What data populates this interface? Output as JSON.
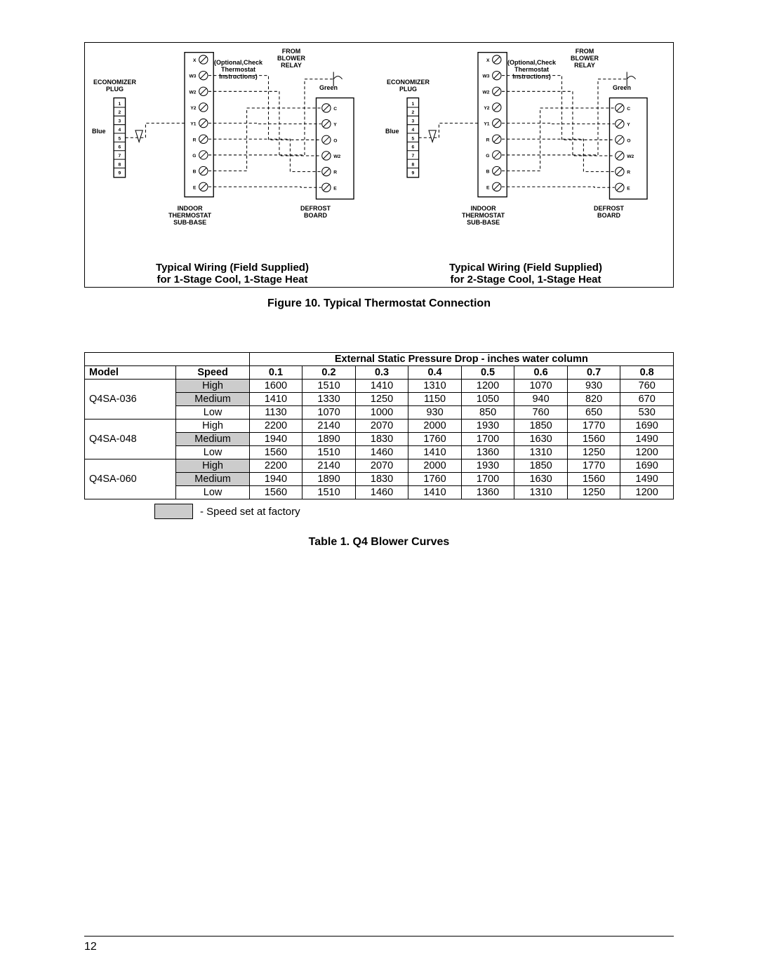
{
  "diagrams": {
    "figure_caption": "Figure 10. Typical Thermostat Connection",
    "panels": [
      {
        "caption_l1": "Typical Wiring (Field Supplied)",
        "caption_l2": "for 1-Stage Cool, 1-Stage Heat",
        "labels": {
          "economizer": "ECONOMIZER\nPLUG",
          "from_blower": "FROM\nBLOWER\nRELAY",
          "green": "Green",
          "blue": "Blue",
          "optional": "(Optional,Check\nThermostat\nInstructions)",
          "indoor": "INDOOR\nTHERMOSTAT\nSUB-BASE",
          "defrost": "DEFROST\nBOARD"
        },
        "thermostat_terminals": [
          "X",
          "W3",
          "W2",
          "Y2",
          "Y1",
          "R",
          "G",
          "B",
          "E"
        ],
        "defrost_terminals": [
          "C",
          "Y",
          "O",
          "W2",
          "R",
          "E"
        ],
        "plug_pins": [
          "1",
          "2",
          "3",
          "4",
          "5",
          "6",
          "7",
          "8",
          "9"
        ]
      },
      {
        "caption_l1": "Typical Wiring (Field Supplied)",
        "caption_l2": "for 2-Stage Cool, 1-Stage Heat",
        "labels": {
          "economizer": "ECONOMIZER\nPLUG",
          "from_blower": "FROM\nBLOWER\nRELAY",
          "green": "Green",
          "blue": "Blue",
          "optional": "(Optional,Check\nThermostat\nInstructions)",
          "indoor": "INDOOR\nTHERMOSTAT\nSUB-BASE",
          "defrost": "DEFROST\nBOARD"
        },
        "thermostat_terminals": [
          "X",
          "W3",
          "W2",
          "Y2",
          "Y1",
          "R",
          "G",
          "B",
          "E"
        ],
        "defrost_terminals": [
          "C",
          "Y",
          "O",
          "W2",
          "R",
          "E"
        ],
        "plug_pins": [
          "1",
          "2",
          "3",
          "4",
          "5",
          "6",
          "7",
          "8",
          "9"
        ]
      }
    ]
  },
  "table": {
    "super_header": "External Static Pressure Drop - inches water column",
    "col_model": "Model",
    "col_speed": "Speed",
    "pressure_cols": [
      "0.1",
      "0.2",
      "0.3",
      "0.4",
      "0.5",
      "0.6",
      "0.7",
      "0.8"
    ],
    "groups": [
      {
        "model": "Q4SA-036",
        "rows": [
          {
            "speed": "High",
            "factory": true,
            "vals": [
              "1600",
              "1510",
              "1410",
              "1310",
              "1200",
              "1070",
              "930",
              "760"
            ]
          },
          {
            "speed": "Medium",
            "factory": true,
            "vals": [
              "1410",
              "1330",
              "1250",
              "1150",
              "1050",
              "940",
              "820",
              "670"
            ]
          },
          {
            "speed": "Low",
            "factory": false,
            "vals": [
              "1130",
              "1070",
              "1000",
              "930",
              "850",
              "760",
              "650",
              "530"
            ]
          }
        ]
      },
      {
        "model": "Q4SA-048",
        "rows": [
          {
            "speed": "High",
            "factory": false,
            "vals": [
              "2200",
              "2140",
              "2070",
              "2000",
              "1930",
              "1850",
              "1770",
              "1690"
            ]
          },
          {
            "speed": "Medium",
            "factory": true,
            "vals": [
              "1940",
              "1890",
              "1830",
              "1760",
              "1700",
              "1630",
              "1560",
              "1490"
            ]
          },
          {
            "speed": "Low",
            "factory": false,
            "vals": [
              "1560",
              "1510",
              "1460",
              "1410",
              "1360",
              "1310",
              "1250",
              "1200"
            ]
          }
        ]
      },
      {
        "model": "Q4SA-060",
        "rows": [
          {
            "speed": "High",
            "factory": true,
            "vals": [
              "2200",
              "2140",
              "2070",
              "2000",
              "1930",
              "1850",
              "1770",
              "1690"
            ]
          },
          {
            "speed": "Medium",
            "factory": true,
            "vals": [
              "1940",
              "1890",
              "1830",
              "1760",
              "1700",
              "1630",
              "1560",
              "1490"
            ]
          },
          {
            "speed": "Low",
            "factory": false,
            "vals": [
              "1560",
              "1510",
              "1460",
              "1410",
              "1360",
              "1310",
              "1250",
              "1200"
            ]
          }
        ]
      }
    ],
    "legend": "- Speed set at factory",
    "caption": "Table 1. Q4 Blower Curves"
  },
  "page_number": "12",
  "style": {
    "colors": {
      "bg": "#ffffff",
      "ink": "#000000",
      "factory_fill": "#cccccc"
    },
    "font_family": "Arial",
    "wire_dash": "4 3"
  }
}
